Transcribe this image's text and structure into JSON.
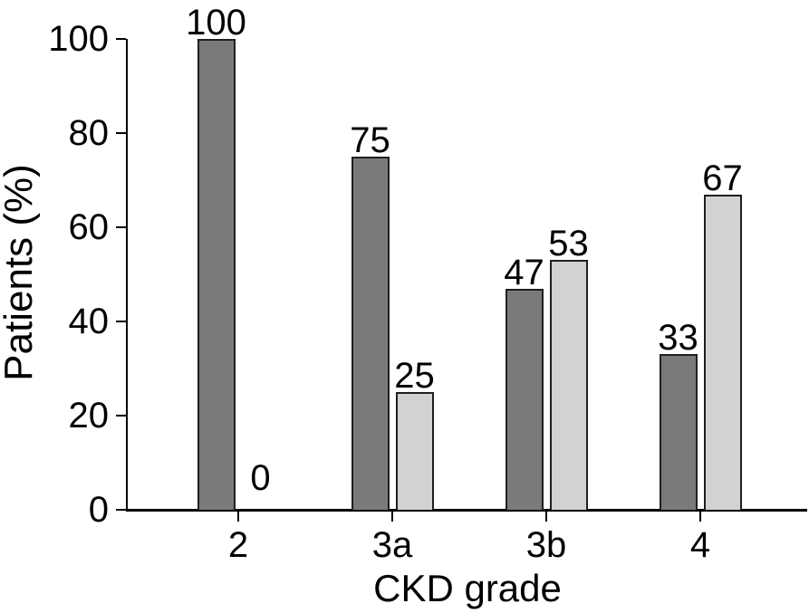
{
  "figure": {
    "background": "#ffffff",
    "axis_color": "#000000",
    "text_color": "#000000"
  },
  "chart_data": {
    "type": "bar",
    "title": "",
    "xlabel": "CKD grade",
    "ylabel": "Patients (%)",
    "categories": [
      "2",
      "3a",
      "3b",
      "4"
    ],
    "series": [
      {
        "name": "dark-gray-series",
        "color": "#7a7a7a",
        "border_color": "#1f1f1f",
        "values": [
          100,
          75,
          47,
          33
        ]
      },
      {
        "name": "light-gray-series",
        "color": "#d2d2d2",
        "border_color": "#1f1f1f",
        "values": [
          0,
          25,
          53,
          67
        ]
      }
    ],
    "bar_value_labels": [
      [
        "100",
        "75",
        "47",
        "33"
      ],
      [
        "0",
        "25",
        "53",
        "67"
      ]
    ],
    "yticks": [
      "0",
      "20",
      "40",
      "60",
      "80",
      "100"
    ],
    "ylim": [
      0,
      100
    ],
    "grid": false,
    "legend_position": "none",
    "value_labels_shown": true
  }
}
